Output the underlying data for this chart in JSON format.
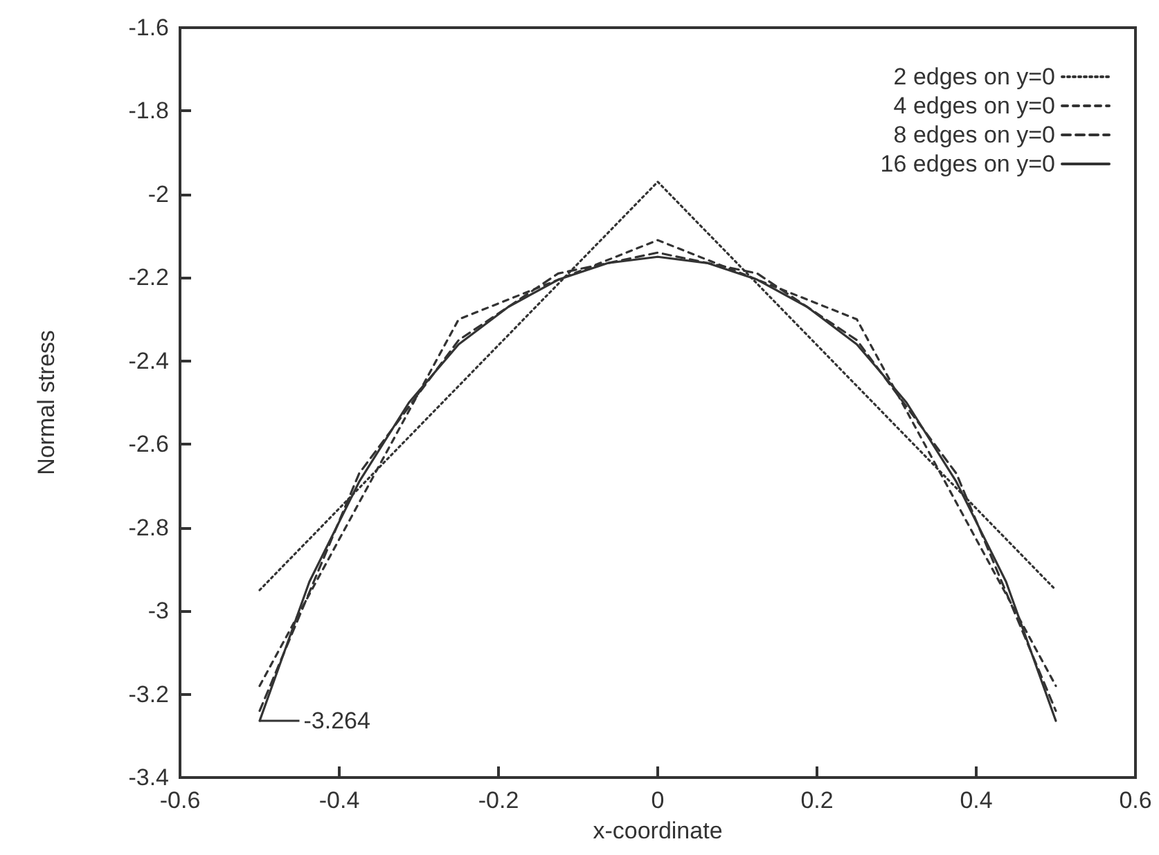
{
  "chart_data": {
    "type": "line",
    "xlabel": "x-coordinate",
    "ylabel": "Normal stress",
    "xlim": [
      -0.6,
      0.6
    ],
    "xticks": [
      -0.6,
      -0.4,
      -0.2,
      0,
      0.2,
      0.4,
      0.6
    ],
    "ylim": [
      -3.4,
      -1.6
    ],
    "yticks": [
      -3.4,
      -3.2,
      -3,
      -2.8,
      -2.6,
      -2.4,
      -2.2,
      -2,
      -1.8,
      -1.6
    ],
    "grid": false,
    "legend": "top right",
    "marker": "none",
    "annotations": [
      {
        "text": "-3.264",
        "x": -0.5,
        "y": -3.264
      }
    ],
    "series": [
      {
        "name": "2 edges on y=0",
        "color": "#333333",
        "line_style": "dotted",
        "x": [
          -0.5,
          0,
          0.5
        ],
        "values": [
          -2.95,
          -1.97,
          -2.95
        ]
      },
      {
        "name": "4 edges on y=0",
        "color": "#333333",
        "line_style": "dashed",
        "x": [
          -0.5,
          -0.25,
          0,
          0.25,
          0.5
        ],
        "values": [
          -3.18,
          -2.3,
          -2.11,
          -2.3,
          -3.18
        ]
      },
      {
        "name": "8 edges on y=0",
        "color": "#333333",
        "line_style": "dashed",
        "x": [
          -0.5,
          -0.375,
          -0.25,
          -0.125,
          0,
          0.125,
          0.25,
          0.375,
          0.5
        ],
        "values": [
          -3.24,
          -2.67,
          -2.35,
          -2.19,
          -2.14,
          -2.19,
          -2.35,
          -2.67,
          -3.24
        ]
      },
      {
        "name": "16 edges on y=0",
        "color": "#333333",
        "line_style": "solid",
        "x": [
          -0.5,
          -0.4375,
          -0.375,
          -0.3125,
          -0.25,
          -0.1875,
          -0.125,
          -0.0625,
          0,
          0.0625,
          0.125,
          0.1875,
          0.25,
          0.3125,
          0.375,
          0.4375,
          0.5
        ],
        "values": [
          -3.264,
          -2.93,
          -2.69,
          -2.5,
          -2.36,
          -2.27,
          -2.205,
          -2.165,
          -2.15,
          -2.165,
          -2.205,
          -2.27,
          -2.36,
          -2.5,
          -2.69,
          -2.93,
          -3.264
        ]
      }
    ]
  }
}
